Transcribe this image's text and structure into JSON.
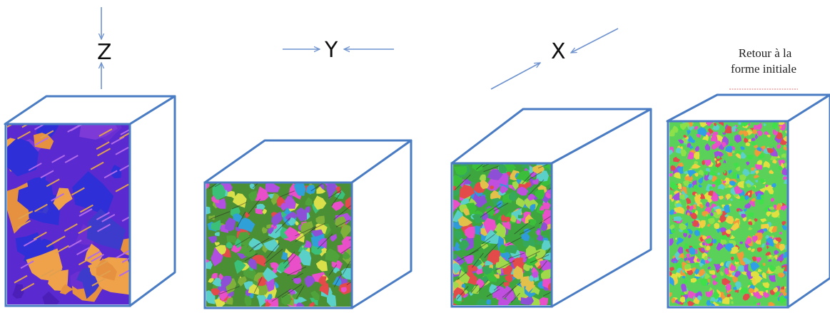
{
  "axes": [
    {
      "label": "Z"
    },
    {
      "label": "Y"
    },
    {
      "label": "X"
    }
  ],
  "final_step": {
    "line1": "Retour à la",
    "line2": "forme initiale"
  },
  "colors": {
    "box_edge": "#4a7cc4",
    "arrow": "#6f93cf",
    "note_underline": "#e36b6b"
  },
  "blocks": [
    {
      "name": "block-1",
      "microstructure": "coarse-grained",
      "palette": [
        "#6b2fd1",
        "#4b1fb8",
        "#f0a24a",
        "#2f2fd8",
        "#9a4fe0",
        "#e6913f",
        "#3d3bcc",
        "#7d3ad6"
      ],
      "grain_count": 30
    },
    {
      "name": "block-2",
      "microstructure": "deformed",
      "palette": [
        "#4fa33a",
        "#2fa0d8",
        "#e94fc9",
        "#8d4fd6",
        "#3bc07a",
        "#d9e04a",
        "#e34a4a",
        "#5ad0c8",
        "#7fb13a",
        "#b04fe0"
      ],
      "grain_count": 220
    },
    {
      "name": "block-3",
      "microstructure": "deformed",
      "palette": [
        "#3bbf3b",
        "#2f9bd8",
        "#e94fc9",
        "#8d4fd6",
        "#a0d94a",
        "#e3c04a",
        "#e34a4a",
        "#5ad0c8",
        "#35a85a",
        "#c04fe0"
      ],
      "grain_count": 300
    },
    {
      "name": "block-4",
      "microstructure": "fine-grained",
      "palette": [
        "#3fe04a",
        "#e94fc9",
        "#e34a4a",
        "#f0d040",
        "#2fa0e8",
        "#9f4fe0",
        "#5ad0c8",
        "#f09a3a",
        "#8de04a",
        "#e0e040"
      ],
      "grain_count": 700
    }
  ]
}
